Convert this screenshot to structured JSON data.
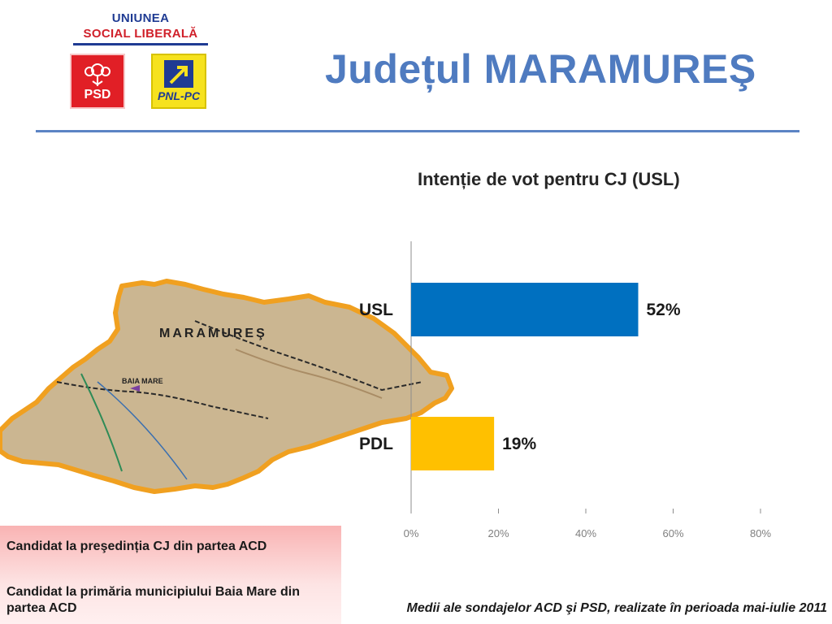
{
  "logo": {
    "line1": "UNIUNEA",
    "line2": "SOCIAL LIBERALĂ",
    "psd_label": "PSD",
    "pnl_label": "PNL-PC"
  },
  "header": {
    "title": "Județul MARAMUREŞ"
  },
  "map": {
    "label": "MARAMUREŞ",
    "city": "BAIA MARE",
    "colors": {
      "fill": "#cbb691",
      "border": "#f0a020"
    }
  },
  "chart_data": {
    "type": "bar",
    "orientation": "horizontal",
    "title": "Intenție de vot pentru CJ (USL)",
    "categories": [
      "USL",
      "PDL"
    ],
    "values": [
      52,
      19
    ],
    "value_labels": [
      "52%",
      "19%"
    ],
    "colors": [
      "#0070c0",
      "#ffc000"
    ],
    "xlim": [
      0,
      80
    ],
    "xticks": [
      "0%",
      "20%",
      "40%",
      "60%",
      "80%"
    ],
    "grid": false
  },
  "info": {
    "line1": "Candidat la preşedinția CJ din partea ACD",
    "line2": "Candidat la primăria municipiului Baia Mare din partea ACD"
  },
  "footnote": "Medii ale sondajelor ACD şi PSD, realizate în perioada mai-iulie 2011"
}
